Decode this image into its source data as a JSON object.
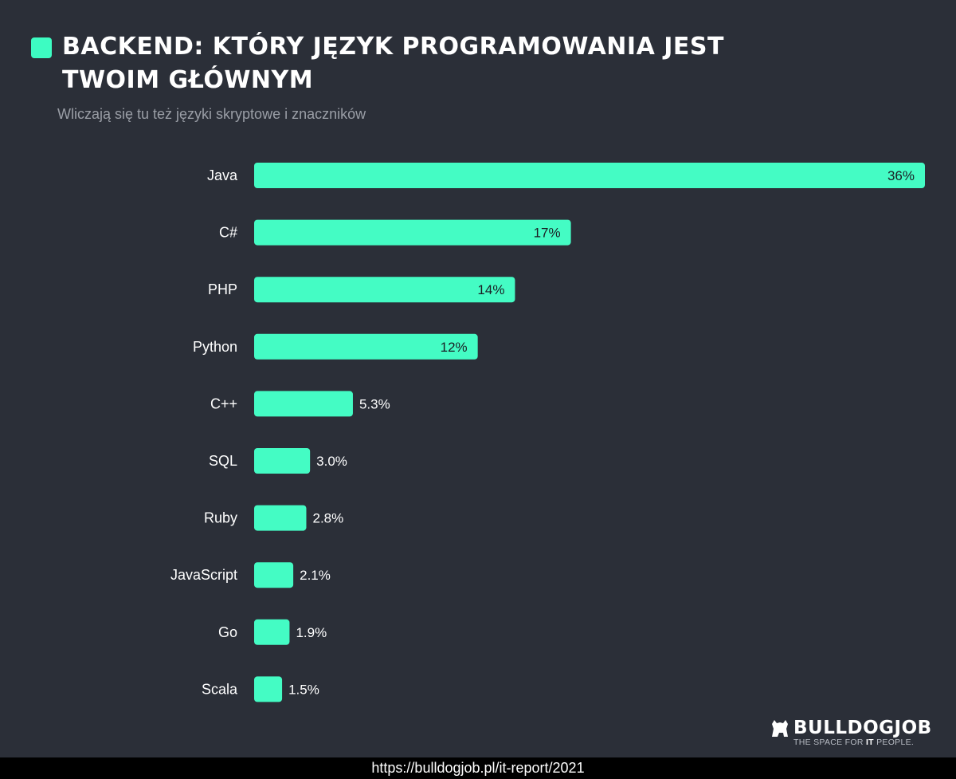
{
  "header": {
    "title": "BACKEND: KTÓRY JĘZYK PROGRAMOWANIA JEST TWOIM GŁÓWNYM",
    "subtitle": "Wliczają się tu też języki skryptowe i znaczników"
  },
  "colors": {
    "accent": "#3dfcc2",
    "bar": "#44fcc4",
    "background": "#2b2f38",
    "text": "#ffffff",
    "value_text_inside": "#1b1e24"
  },
  "chart_data": {
    "type": "bar",
    "orientation": "horizontal",
    "title": "BACKEND: KTÓRY JĘZYK PROGRAMOWANIA JEST TWOIM GŁÓWNYM",
    "subtitle": "Wliczają się tu też języki skryptowe i znaczników",
    "categories": [
      "Java",
      "C#",
      "PHP",
      "Python",
      "C++",
      "SQL",
      "Ruby",
      "JavaScript",
      "Go",
      "Scala"
    ],
    "values": [
      36,
      17,
      14,
      12,
      5.3,
      3.0,
      2.8,
      2.1,
      1.9,
      1.5
    ],
    "value_labels": [
      "36%",
      "17%",
      "14%",
      "12%",
      "5.3%",
      "3.0%",
      "2.8%",
      "2.1%",
      "1.9%",
      "1.5%"
    ],
    "unit": "%",
    "xlim": [
      0,
      36
    ],
    "grid": false,
    "legend": "none"
  },
  "branding": {
    "logo_icon": "bulldog-icon",
    "name": "BULLDOGJOB",
    "tagline_before": "THE SPACE FOR ",
    "tagline_bold": "IT",
    "tagline_after": " PEOPLE."
  },
  "footer": {
    "url": "https://bulldogjob.pl/it-report/2021"
  }
}
